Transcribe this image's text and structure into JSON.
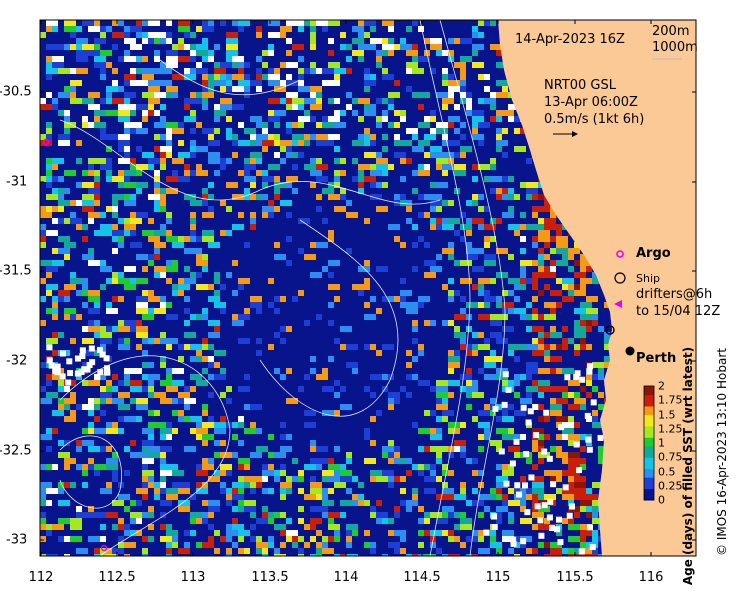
{
  "title_time": "14-Apr-2023 16Z",
  "contours": {
    "c1": "200m",
    "c2": "1000m"
  },
  "current_info": {
    "line1": "NRT00 GSL",
    "line2": "13-Apr 06:00Z",
    "line3": "0.5m/s (1kt 6h)"
  },
  "legend": {
    "argo": "Argo",
    "ship": "Ship",
    "drifters_line1": "drifters@6h",
    "drifters_line2": "to 15/04 12Z"
  },
  "place": "Perth",
  "x_ticks": [
    "112",
    "112.5",
    "113",
    "113.5",
    "114",
    "114.5",
    "115",
    "115.5",
    "116"
  ],
  "y_ticks": [
    "-30.5",
    "-31",
    "-31.5",
    "-32",
    "-32.5",
    "-33"
  ],
  "colorbar": {
    "title": "Age (days) of filled SST (wrt latest)",
    "labels": [
      "2",
      "1.75",
      "1.5",
      "1.25",
      "1",
      "0.75",
      "0.5",
      "0.25",
      "0"
    ]
  },
  "credit": "© IMOS 16-Apr-2023 13:10 Hobart",
  "colors": {
    "land": "#fbc996",
    "deep_blue": "#07148c",
    "blue": "#1e3fd6",
    "mid_blue": "#2a8ff0",
    "cyan": "#14c4e8",
    "teal": "#12a89a",
    "green": "#1fcc30",
    "lime": "#a6e81e",
    "yellow": "#f2e81a",
    "orange": "#f59a14",
    "red": "#c81e0a",
    "dark_red": "#8c1408"
  }
}
